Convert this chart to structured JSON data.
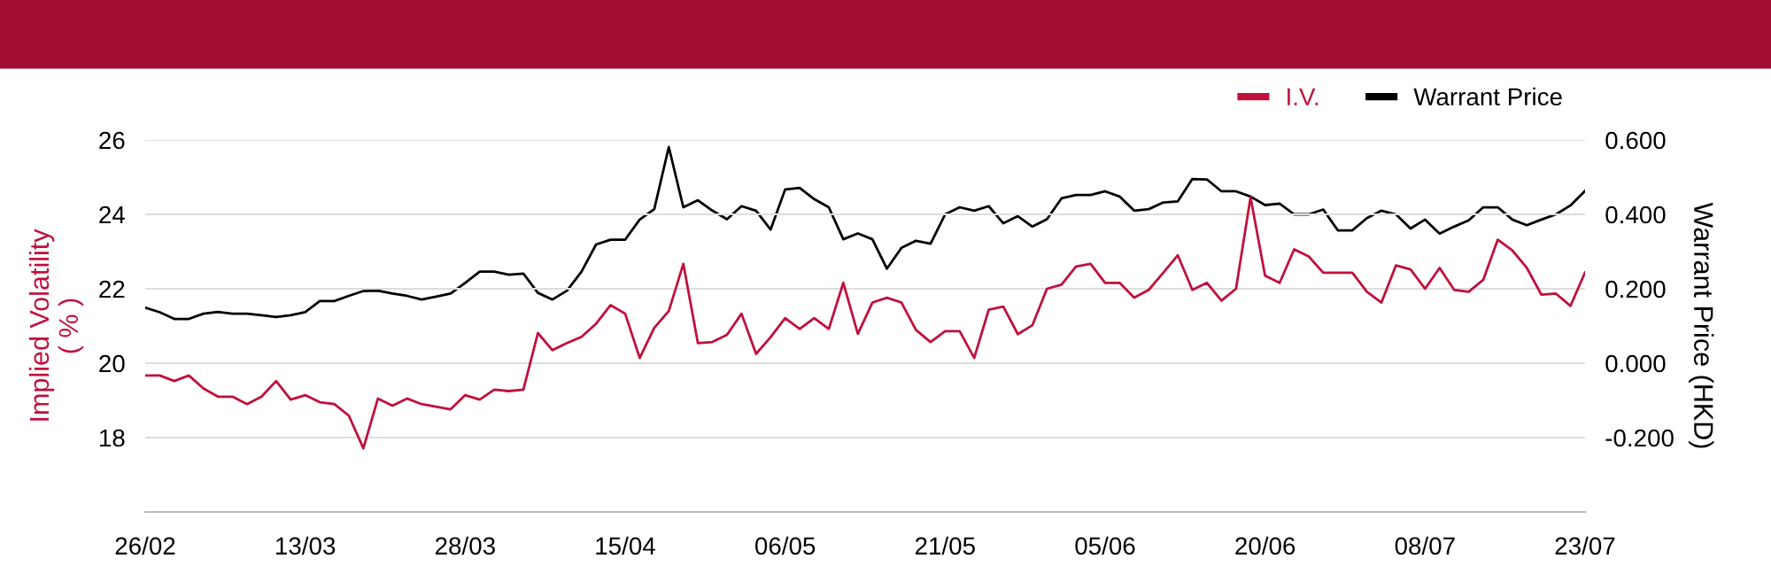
{
  "chart_data": {
    "type": "line",
    "categories": [
      "26/02",
      null,
      null,
      null,
      null,
      null,
      null,
      null,
      null,
      null,
      null,
      "13/03",
      null,
      null,
      null,
      null,
      null,
      null,
      null,
      null,
      null,
      null,
      "28/03",
      null,
      null,
      null,
      null,
      null,
      null,
      null,
      null,
      null,
      null,
      "15/04",
      null,
      null,
      null,
      null,
      null,
      null,
      null,
      null,
      null,
      null,
      "06/05",
      null,
      null,
      null,
      null,
      null,
      null,
      null,
      null,
      null,
      null,
      "21/05",
      null,
      null,
      null,
      null,
      null,
      null,
      null,
      null,
      null,
      null,
      "05/06",
      null,
      null,
      null,
      null,
      null,
      null,
      null,
      null,
      null,
      null,
      "20/06",
      null,
      null,
      null,
      null,
      null,
      null,
      null,
      null,
      null,
      null,
      "08/07",
      null,
      null,
      null,
      null,
      null,
      null,
      null,
      null,
      null,
      null,
      "23/07"
    ],
    "series": [
      {
        "name": "I.V.",
        "color": "#c0103c",
        "values": [
          19.67,
          19.67,
          19.52,
          19.67,
          19.32,
          19.1,
          19.1,
          18.9,
          19.1,
          19.52,
          19.02,
          19.14,
          18.95,
          18.9,
          18.59,
          17.71,
          19.05,
          18.86,
          19.05,
          18.9,
          18.83,
          18.76,
          19.14,
          19.02,
          19.29,
          19.25,
          19.29,
          20.81,
          20.35,
          20.54,
          20.71,
          21.06,
          21.56,
          21.33,
          20.14,
          20.95,
          21.4,
          22.67,
          20.54,
          20.57,
          20.76,
          21.33,
          20.25,
          20.7,
          21.21,
          20.92,
          21.21,
          20.92,
          22.16,
          20.79,
          21.63,
          21.76,
          21.63,
          20.89,
          20.57,
          20.86,
          20.86,
          20.14,
          21.44,
          21.52,
          20.78,
          21.02,
          22.0,
          22.11,
          22.6,
          22.67,
          22.16,
          22.16,
          21.76,
          21.97,
          22.43,
          22.9,
          21.97,
          22.16,
          21.68,
          22.0,
          24.46,
          22.35,
          22.16,
          23.06,
          22.87,
          22.43,
          22.43,
          22.43,
          21.92,
          21.63,
          22.63,
          22.52,
          22.0,
          22.56,
          21.97,
          21.92,
          22.24,
          23.32,
          23.03,
          22.56,
          21.84,
          21.87,
          21.54,
          22.44
        ]
      },
      {
        "name": "Warrant Price",
        "color": "#000000",
        "axis": "y2",
        "values": [
          0.149,
          0.137,
          0.119,
          0.119,
          0.133,
          0.138,
          0.133,
          0.133,
          0.129,
          0.124,
          0.129,
          0.137,
          0.167,
          0.167,
          0.181,
          0.194,
          0.195,
          0.187,
          0.181,
          0.171,
          0.179,
          0.187,
          0.216,
          0.246,
          0.246,
          0.238,
          0.241,
          0.189,
          0.171,
          0.195,
          0.246,
          0.319,
          0.332,
          0.332,
          0.386,
          0.414,
          0.581,
          0.419,
          0.438,
          0.41,
          0.387,
          0.422,
          0.41,
          0.359,
          0.467,
          0.471,
          0.441,
          0.419,
          0.333,
          0.349,
          0.333,
          0.254,
          0.31,
          0.329,
          0.321,
          0.4,
          0.419,
          0.41,
          0.422,
          0.376,
          0.395,
          0.367,
          0.387,
          0.443,
          0.452,
          0.452,
          0.462,
          0.448,
          0.41,
          0.414,
          0.432,
          0.435,
          0.495,
          0.494,
          0.462,
          0.462,
          0.448,
          0.425,
          0.429,
          0.4,
          0.4,
          0.413,
          0.357,
          0.357,
          0.39,
          0.41,
          0.4,
          0.362,
          0.386,
          0.348,
          0.367,
          0.384,
          0.419,
          0.419,
          0.386,
          0.371,
          0.386,
          0.4,
          0.424,
          0.463
        ]
      }
    ],
    "ylabel": "Implied Volatility\n( % )",
    "y2label": "Warrant Price (HKD)",
    "ylim": [
      16,
      26
    ],
    "yticks": [
      18,
      20,
      22,
      24,
      26
    ],
    "y2lim": [
      -0.4,
      0.6
    ],
    "y2ticks": [
      {
        "value": -0.2,
        "label": "-0.200"
      },
      {
        "value": 0,
        "label": "0.000"
      },
      {
        "value": 0.2,
        "label": "0.200"
      },
      {
        "value": 0.4,
        "label": "0.400"
      },
      {
        "value": 0.6,
        "label": "0.600"
      }
    ],
    "grid": "y",
    "legend": "top right",
    "marker": "none",
    "line_style": "solid"
  }
}
